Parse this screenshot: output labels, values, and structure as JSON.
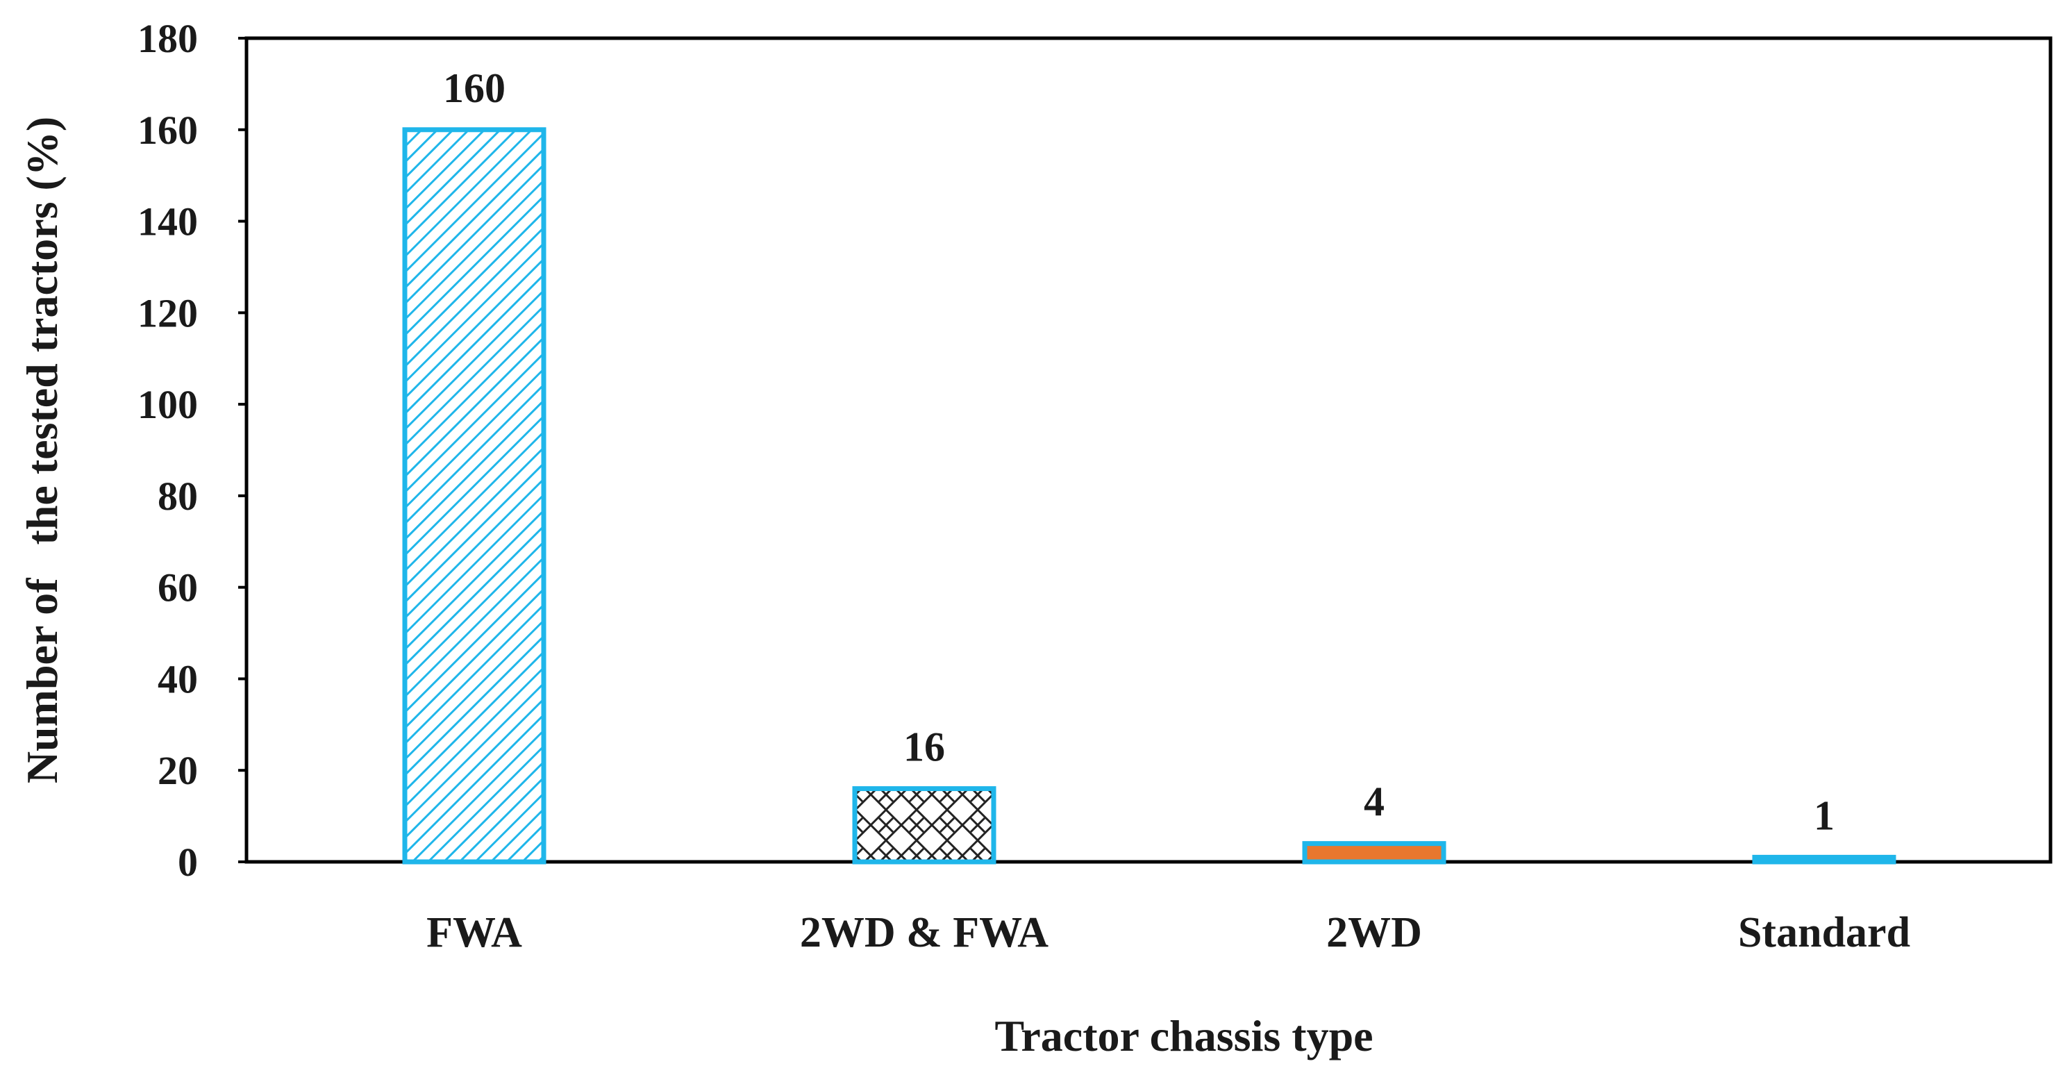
{
  "chart_data": {
    "type": "bar",
    "title": "",
    "xlabel": "Tractor chassis type",
    "ylabel": "Number of   the tested tractors (%)",
    "categories": [
      "FWA",
      "2WD & FWA",
      "2WD",
      "Standard"
    ],
    "values": [
      160,
      16,
      4,
      1
    ],
    "data_labels": [
      "160",
      "16",
      "4",
      "1"
    ],
    "ylim": [
      0,
      180
    ],
    "yticks": [
      0,
      20,
      40,
      60,
      80,
      100,
      120,
      140,
      160,
      180
    ],
    "grid": false,
    "legend": "none",
    "bar_styles": [
      {
        "fill": "diagonal-hatch-blue",
        "edge": "#1fb6ea"
      },
      {
        "fill": "crosshatch-black",
        "edge": "#1fb6ea"
      },
      {
        "fill": "#e8772e",
        "edge": "#1fb6ea"
      },
      {
        "fill": "#1fb6ea",
        "edge": "#1fb6ea"
      }
    ],
    "colors": {
      "bar_edge": "#1fb6ea",
      "hatch_blue": "#1fb6ea",
      "hatch_black": "#222222",
      "orange": "#e8772e",
      "axis": "#000000"
    }
  }
}
